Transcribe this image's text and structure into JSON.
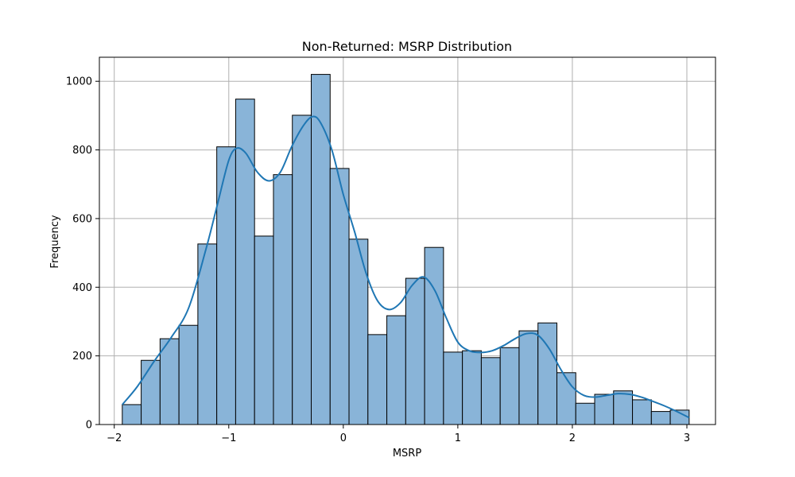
{
  "chart_data": {
    "type": "bar",
    "title": "Non-Returned: MSRP Distribution",
    "xlabel": "MSRP",
    "ylabel": "Frequency",
    "xlim": [
      -2.13,
      3.25
    ],
    "ylim": [
      0,
      1070
    ],
    "xticks": [
      -2,
      -1,
      0,
      1,
      2,
      3
    ],
    "xtick_labels": [
      "−2",
      "−1",
      "0",
      "1",
      "2",
      "3"
    ],
    "yticks": [
      0,
      200,
      400,
      600,
      800,
      1000
    ],
    "ytick_labels": [
      "0",
      "200",
      "400",
      "600",
      "800",
      "1000"
    ],
    "grid": true,
    "legend": false,
    "bar_color": "#89b4d8",
    "line_color": "#1f77b4",
    "bin_edges": [
      -1.93,
      -1.765,
      -1.6,
      -1.435,
      -1.27,
      -1.105,
      -0.94,
      -0.775,
      -0.61,
      -0.445,
      -0.28,
      -0.115,
      0.05,
      0.215,
      0.38,
      0.545,
      0.71,
      0.875,
      1.04,
      1.205,
      1.37,
      1.535,
      1.7,
      1.865,
      2.03,
      2.195,
      2.36,
      2.525,
      2.69,
      2.855,
      3.02
    ],
    "values": [
      58,
      187,
      250,
      289,
      526,
      809,
      948,
      549,
      728,
      901,
      1020,
      746,
      540,
      262,
      317,
      426,
      516,
      211,
      215,
      195,
      224,
      273,
      296,
      151,
      62,
      88,
      98,
      72,
      38,
      42
    ],
    "kde": {
      "x": [
        -1.93,
        -1.8,
        -1.65,
        -1.5,
        -1.35,
        -1.2,
        -1.1,
        -1.0,
        -0.93,
        -0.85,
        -0.75,
        -0.65,
        -0.55,
        -0.45,
        -0.35,
        -0.27,
        -0.2,
        -0.1,
        0.0,
        0.1,
        0.2,
        0.3,
        0.4,
        0.5,
        0.6,
        0.7,
        0.8,
        0.9,
        1.0,
        1.1,
        1.2,
        1.3,
        1.4,
        1.5,
        1.6,
        1.7,
        1.8,
        1.9,
        2.0,
        2.1,
        2.2,
        2.3,
        2.4,
        2.5,
        2.6,
        2.7,
        2.8,
        2.9,
        3.02
      ],
      "y": [
        58,
        110,
        185,
        255,
        340,
        510,
        640,
        770,
        805,
        790,
        735,
        710,
        735,
        810,
        870,
        897,
        880,
        800,
        670,
        560,
        440,
        360,
        335,
        355,
        405,
        430,
        390,
        310,
        240,
        215,
        210,
        215,
        230,
        250,
        265,
        260,
        220,
        160,
        110,
        85,
        80,
        85,
        90,
        88,
        80,
        68,
        55,
        40,
        20
      ]
    }
  }
}
